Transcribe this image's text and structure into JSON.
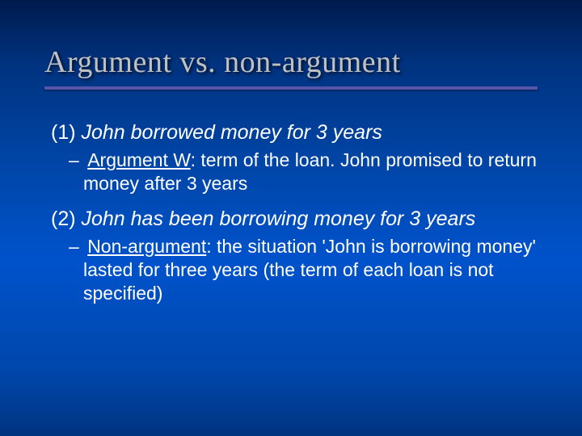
{
  "slide": {
    "title": "Argument vs. non-argument",
    "colors": {
      "title_color": "#c0c0c0",
      "body_color": "#ffffff",
      "underline_color": "#5555aa",
      "bg_gradient_top": "#001a4d",
      "bg_gradient_mid": "#0052cc",
      "bg_gradient_bot": "#003380"
    },
    "fonts": {
      "title_family": "Times New Roman",
      "title_size_pt": 38,
      "body_family": "Arial",
      "body_size_pt": 25,
      "sub_size_pt": 23
    },
    "item1_lead": "(1) ",
    "item1_text": "John borrowed money for 3 years",
    "sub1_dash": "– ",
    "sub1_label": "Argument W",
    "sub1_rest": ": term of the loan. John promised to return money after 3 years",
    "item2_lead": "(2) ",
    "item2_text": "John has been borrowing money for 3 years",
    "sub2_dash": "–  ",
    "sub2_label": "Non-argument",
    "sub2_rest": ": the situation 'John is borrowing money' lasted for three years (the term of each loan is not specified)"
  }
}
